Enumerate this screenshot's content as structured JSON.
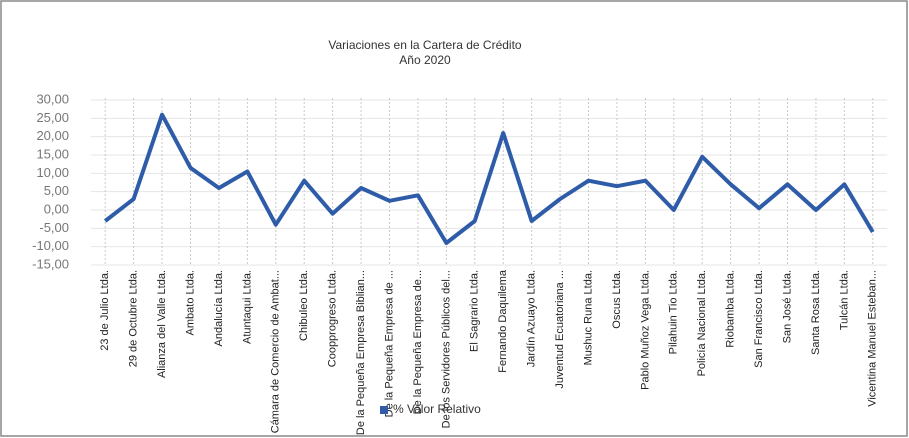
{
  "chart_data": {
    "type": "line",
    "title": "Variaciones en la Cartera de Crédito",
    "subtitle": "Año 2020",
    "categories": [
      "23 de Julio Ltda.",
      "29 de Octubre Ltda.",
      "Alianza del Valle Ltda.",
      "Ambato Ltda.",
      "Andalucía Ltda.",
      "Atuntaqui Ltda.",
      "Cámara de Comercio de Ambat...",
      "Chibuleo Ltda.",
      "Coopprogreso Ltda.",
      "De la Pequeña Empresa Biblian...",
      "De la Pequeña Empresa de ...",
      "De la Pequeña Empresa de...",
      "De los Servidores Públicos del...",
      "El Sagrario Ltda.",
      "Fernando Daquilema",
      "Jardín Azuayo Ltda.",
      "Juventud Ecuatoriana ...",
      "Mushuc Runa Ltda.",
      "Oscus Ltda.",
      "Pablo Muñoz Vega Ltda.",
      "Pilahuin Tio Ltda.",
      "Policía Nacional Ltda.",
      "Riobamba Ltda.",
      "San Francisco Ltda.",
      "San José Ltda.",
      "Santa Rosa Ltda.",
      "Tulcán Ltda.",
      "Vicentina Manuel Esteban..."
    ],
    "series": [
      {
        "name": "% Valor Relativo",
        "color": "#2e5ca8",
        "values": [
          -3,
          3,
          26,
          11.5,
          6,
          10.5,
          -4,
          8,
          -1,
          6,
          2.5,
          4,
          -9,
          -3,
          21,
          -3,
          3,
          8,
          6.5,
          8,
          0,
          14.5,
          7,
          0.5,
          7,
          0,
          7,
          -6
        ]
      }
    ],
    "ylim": [
      -15,
      30
    ],
    "yticks": [
      {
        "value": -15,
        "label": "-15,00"
      },
      {
        "value": -10,
        "label": "-10,00"
      },
      {
        "value": -5,
        "label": "-5,00"
      },
      {
        "value": 0,
        "label": "0,00"
      },
      {
        "value": 5,
        "label": "5,00"
      },
      {
        "value": 10,
        "label": "10,00"
      },
      {
        "value": 15,
        "label": "15,00"
      },
      {
        "value": 20,
        "label": "20,00"
      },
      {
        "value": 25,
        "label": "25,00"
      },
      {
        "value": 30,
        "label": "30,00"
      }
    ],
    "grid": true
  }
}
